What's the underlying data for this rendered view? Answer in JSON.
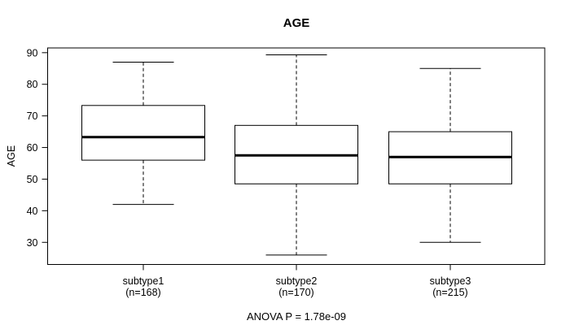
{
  "chart_data": {
    "type": "boxplot",
    "title": "AGE",
    "ylabel": "AGE",
    "xlabel": "",
    "annotation": "ANOVA P = 1.78e-09",
    "categories": [
      "subtype1",
      "subtype2",
      "subtype3"
    ],
    "category_sublabels": [
      "(n=168)",
      "(n=170)",
      "(n=215)"
    ],
    "yticks": [
      30,
      40,
      50,
      60,
      70,
      80,
      90
    ],
    "ylim": [
      23,
      91.5
    ],
    "grid": false,
    "legend": "none",
    "series": [
      {
        "name": "subtype1",
        "n": 168,
        "whisker_low": 42,
        "q1": 56,
        "median": 63.3,
        "q3": 73.3,
        "whisker_high": 87
      },
      {
        "name": "subtype2",
        "n": 170,
        "whisker_low": 26,
        "q1": 48.5,
        "median": 57.5,
        "q3": 67,
        "whisker_high": 89.3
      },
      {
        "name": "subtype3",
        "n": 215,
        "whisker_low": 30,
        "q1": 48.5,
        "median": 57,
        "q3": 65,
        "whisker_high": 85
      }
    ],
    "line_color": "#000000",
    "box_fill": "#ffffff",
    "background_color": "#ffffff"
  }
}
